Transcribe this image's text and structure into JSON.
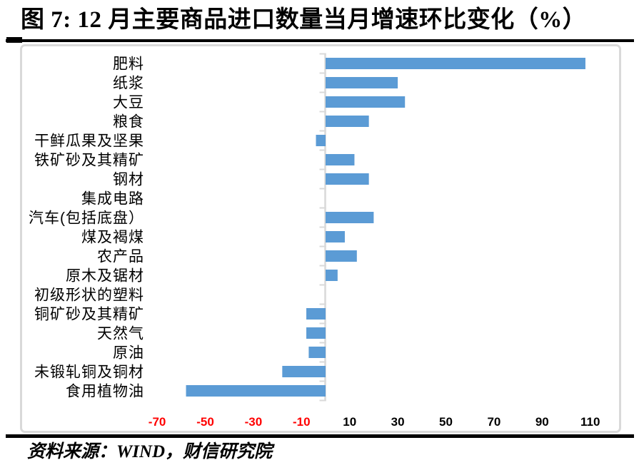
{
  "header": {
    "title": "图 7:  12 月主要商品进口数量当月增速环比变化（%）"
  },
  "footer": {
    "source": "资料来源：WIND，财信研究院"
  },
  "chart_data": {
    "type": "bar",
    "orientation": "horizontal",
    "title": "12 月主要商品进口数量当月增速环比变化（%）",
    "unit": "%",
    "categories": [
      "肥料",
      "纸浆",
      "大豆",
      "粮食",
      "干鲜瓜果及坚果",
      "铁矿砂及其精矿",
      "钢材",
      "集成电路",
      "汽车(包括底盘）",
      "煤及褐煤",
      "农产品",
      "原木及锯材",
      "初级形状的塑料",
      "铜矿砂及其精矿",
      "天然气",
      "原油",
      "未锻轧铜及铜材",
      "食用植物油"
    ],
    "values": [
      108,
      30,
      33,
      18,
      -4,
      12,
      18,
      0,
      20,
      8,
      13,
      5,
      0,
      -8,
      -8,
      -7,
      -18,
      -58
    ],
    "x_ticks": [
      -70,
      -50,
      -30,
      -10,
      10,
      30,
      50,
      70,
      90,
      110
    ],
    "xlim": [
      -80,
      122
    ],
    "grid": false,
    "legend": false,
    "colors": {
      "bar": "#5B9BD5",
      "axis": "#D9D9D9",
      "tick_label_negative": "#FF0000",
      "tick_label_positive": "#000000",
      "category_label": "#000000"
    }
  }
}
